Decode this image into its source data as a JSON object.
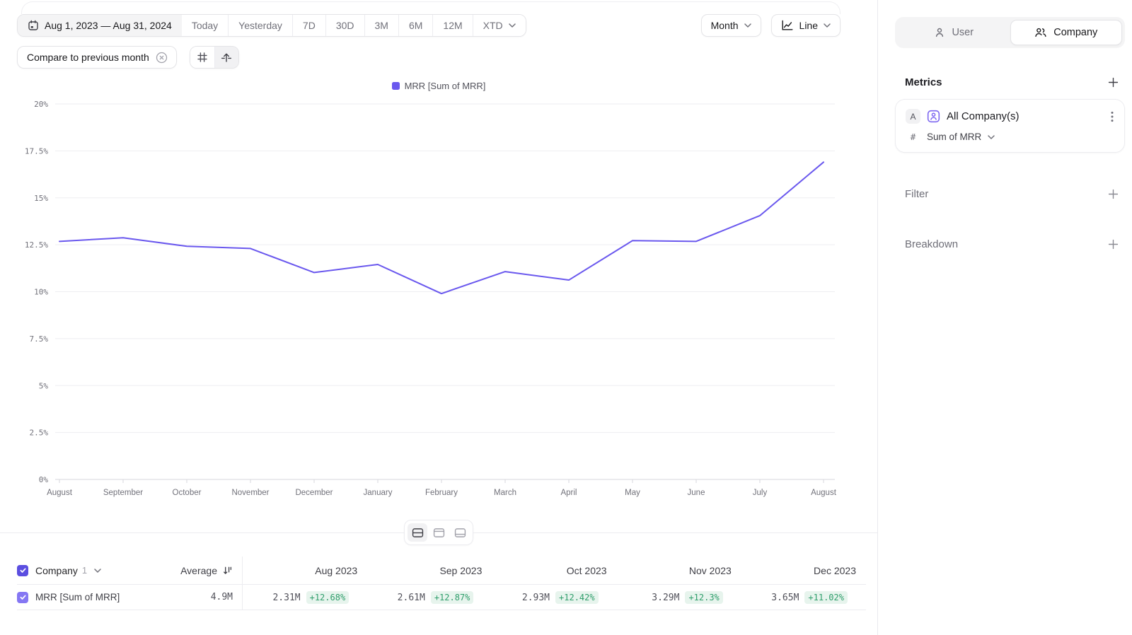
{
  "toolbar": {
    "date_range": "Aug 1, 2023 — Aug 31, 2024",
    "presets": [
      "Today",
      "Yesterday",
      "7D",
      "30D",
      "3M",
      "6M",
      "12M"
    ],
    "xtd_label": "XTD",
    "compare_label": "Compare to previous month",
    "granularity_label": "Month",
    "chart_type_label": "Line"
  },
  "legend": {
    "label": "MRR [Sum of MRR]",
    "color": "#6a58ee"
  },
  "chart_data": {
    "type": "line",
    "title": "",
    "x": [
      "August",
      "September",
      "October",
      "November",
      "December",
      "January",
      "February",
      "March",
      "April",
      "May",
      "June",
      "July",
      "August"
    ],
    "series": [
      {
        "name": "MRR [Sum of MRR]",
        "values": [
          12.68,
          12.87,
          12.42,
          12.3,
          11.02,
          11.45,
          9.9,
          11.07,
          10.62,
          12.72,
          12.68,
          14.05,
          16.9
        ]
      }
    ],
    "yticks": [
      0,
      2.5,
      5,
      7.5,
      10,
      12.5,
      15,
      17.5,
      20
    ],
    "ylim": [
      0,
      20
    ],
    "y_format": "percent",
    "grid": true,
    "legend_position": "top",
    "line_color": "#6a58ee"
  },
  "view_toggle": {
    "options": [
      "split-view",
      "chart-view",
      "table-view"
    ],
    "active": "split-view"
  },
  "table": {
    "group_label": "Company",
    "group_count": "1",
    "average_label": "Average",
    "row_label": "MRR [Sum of MRR]",
    "average_value": "4.9M",
    "columns": [
      {
        "label": "Aug 2023",
        "value": "2.31M",
        "delta": "+12.68%"
      },
      {
        "label": "Sep 2023",
        "value": "2.61M",
        "delta": "+12.87%"
      },
      {
        "label": "Oct 2023",
        "value": "2.93M",
        "delta": "+12.42%"
      },
      {
        "label": "Nov 2023",
        "value": "3.29M",
        "delta": "+12.3%"
      },
      {
        "label": "Dec 2023",
        "value": "3.65M",
        "delta": "+11.02%"
      }
    ],
    "delta_color": "#2f9e6b",
    "delta_bg": "#e7f4ed"
  },
  "sidebar": {
    "entity_toggle": {
      "user_label": "User",
      "company_label": "Company",
      "active": "Company"
    },
    "metrics_title": "Metrics",
    "metric_card": {
      "series_badge": "A",
      "name": "All Company(s)",
      "property_prefix": "#",
      "property": "Sum of MRR"
    },
    "filter_title": "Filter",
    "breakdown_title": "Breakdown"
  },
  "colors": {
    "accent": "#6a58ee",
    "checkbox_header": "#5b4ee0",
    "checkbox_row": "#8577f3"
  }
}
